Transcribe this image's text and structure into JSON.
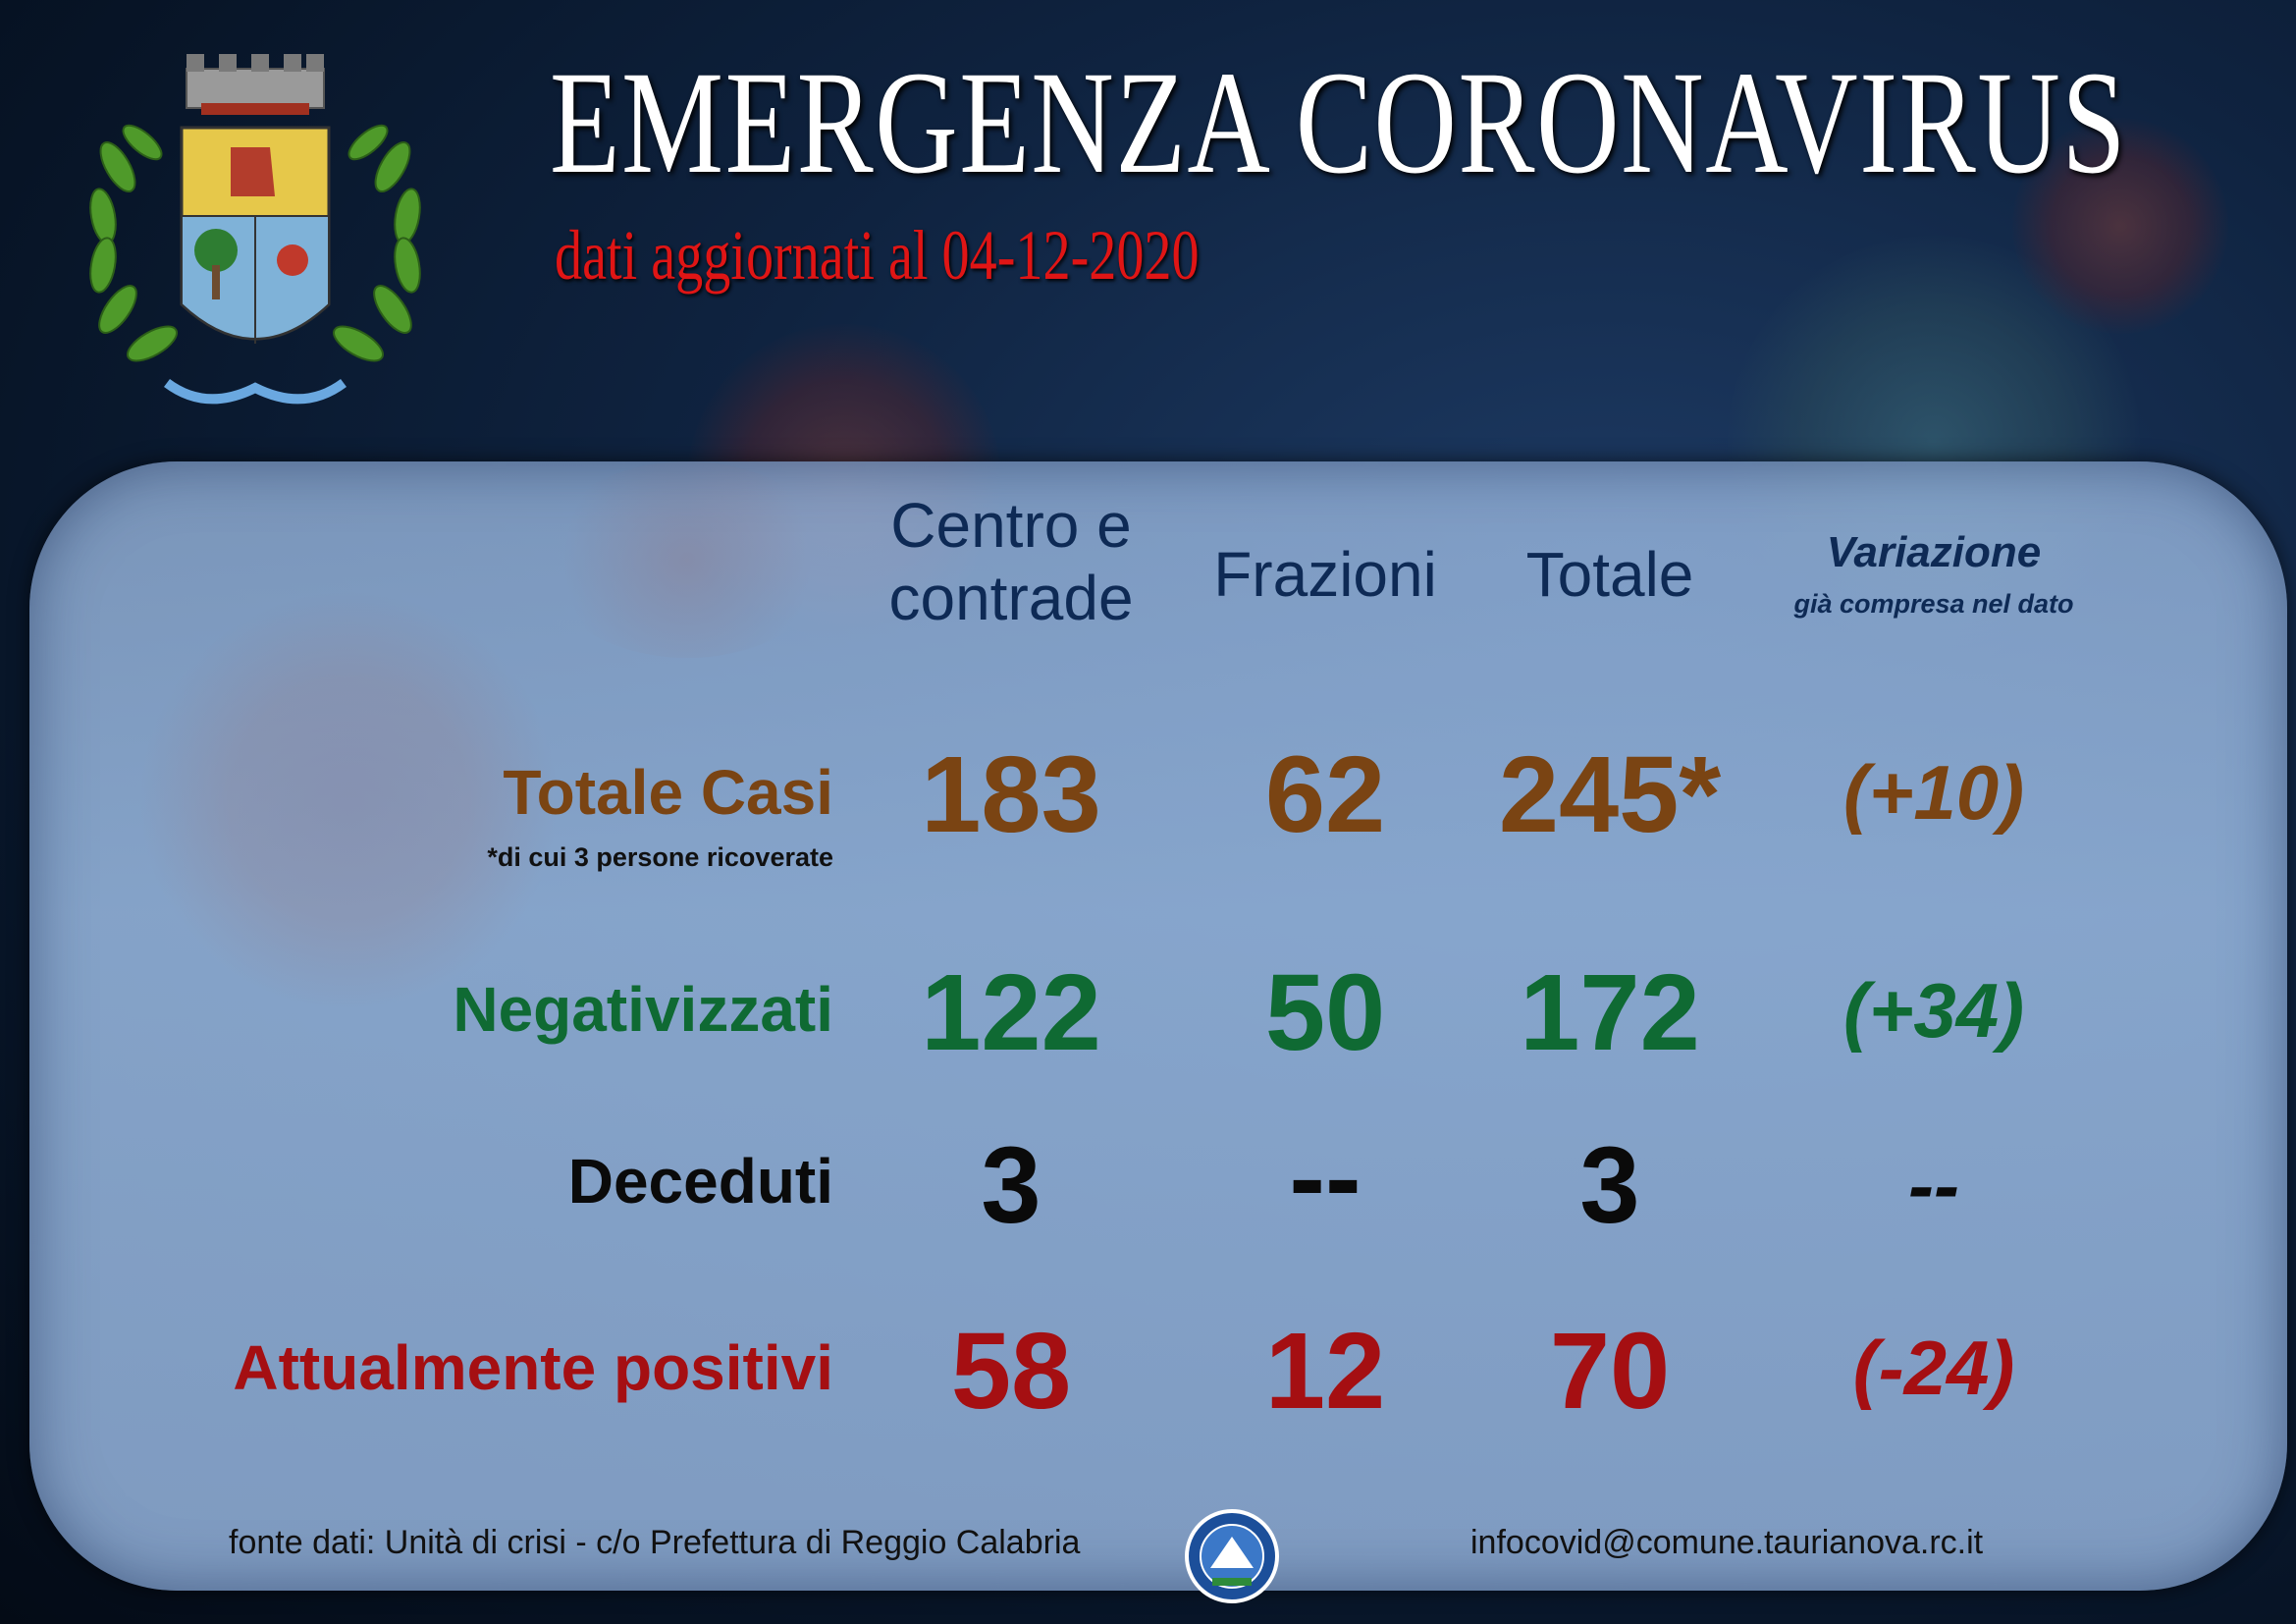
{
  "header": {
    "title": "EMERGENZA CORONAVIRUS",
    "subtitle": "dati aggiornati al 04-12-2020"
  },
  "logos": {
    "crest_icon": "municipal-coat-of-arms",
    "seal_icon": "prefettura-seal"
  },
  "table": {
    "columns": {
      "centro_line1": "Centro e",
      "centro_line2": "contrade",
      "frazioni": "Frazioni",
      "totale": "Totale",
      "variazione": "Variazione",
      "variazione_note": "già compresa nel dato"
    },
    "rows": [
      {
        "label": "Totale Casi",
        "centro": "183",
        "frazioni": "62",
        "totale": "245*",
        "variazione": "(+10)",
        "color": "#7a4413"
      },
      {
        "label": "Negativizzati",
        "centro": "122",
        "frazioni": "50",
        "totale": "172",
        "variazione": "(+34)",
        "color": "#0f6a33"
      },
      {
        "label": "Deceduti",
        "centro": "3",
        "frazioni": "--",
        "totale": "3",
        "variazione": "--",
        "color": "#0a0a0a"
      },
      {
        "label": "Attualmente positivi",
        "centro": "58",
        "frazioni": "12",
        "totale": "70",
        "variazione": "(-24)",
        "color": "#a50f12"
      }
    ],
    "footnote": "*di cui 3 persone ricoverate"
  },
  "footer": {
    "source": "fonte dati: Unità di crisi - c/o Prefettura di Reggio Calabria",
    "email": "infocovid@comune.taurianova.rc.it"
  }
}
